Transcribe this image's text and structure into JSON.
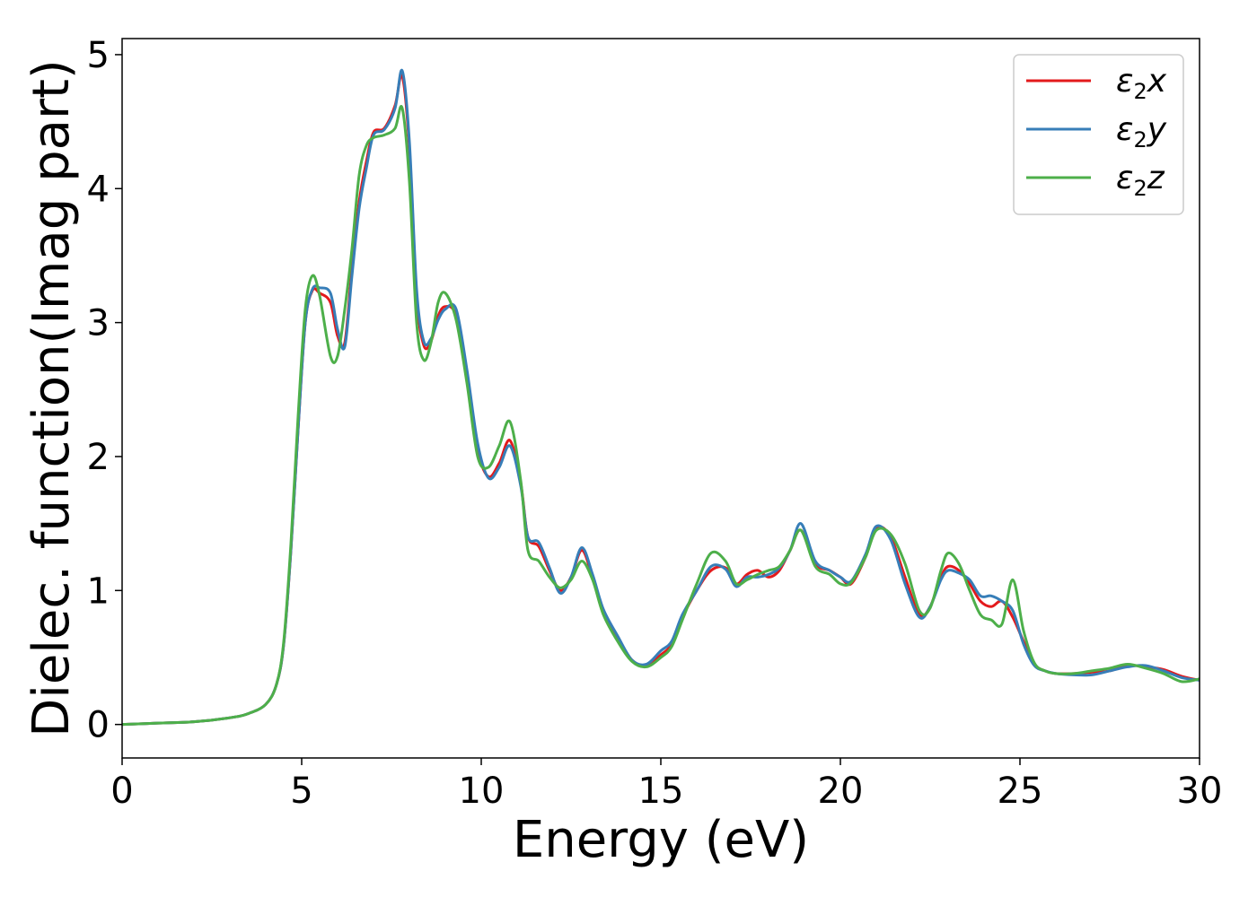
{
  "chart_data": {
    "type": "line",
    "title": "",
    "xlabel": "Energy (eV)",
    "ylabel": "Dielec. function(Imag part)",
    "xlim": [
      0,
      30
    ],
    "ylim": [
      -0.25,
      5.12
    ],
    "xticks": [
      0,
      5,
      10,
      15,
      20,
      25,
      30
    ],
    "yticks": [
      0,
      1,
      2,
      3,
      4,
      5
    ],
    "grid": false,
    "legend_position": "top-right",
    "series": [
      {
        "name": "ε₂x",
        "label_main": "ε",
        "label_sub": "2",
        "label_suffix": "x",
        "color": "#e31a1c",
        "x": [
          0,
          1,
          2,
          3,
          3.5,
          4,
          4.3,
          4.5,
          4.7,
          4.9,
          5.1,
          5.3,
          5.5,
          5.8,
          6.0,
          6.2,
          6.4,
          6.6,
          6.8,
          7.0,
          7.3,
          7.6,
          7.8,
          8.0,
          8.2,
          8.4,
          8.6,
          8.8,
          9.0,
          9.3,
          9.6,
          9.9,
          10.2,
          10.5,
          10.8,
          11.1,
          11.3,
          11.6,
          11.9,
          12.2,
          12.5,
          12.8,
          13.1,
          13.4,
          13.8,
          14.2,
          14.6,
          15.0,
          15.3,
          15.6,
          16.0,
          16.4,
          16.8,
          17.1,
          17.4,
          17.7,
          18.0,
          18.3,
          18.6,
          18.9,
          19.3,
          19.7,
          20.0,
          20.3,
          20.7,
          21.0,
          21.4,
          21.8,
          22.2,
          22.5,
          22.8,
          23.0,
          23.3,
          23.6,
          23.9,
          24.2,
          24.5,
          24.8,
          25.1,
          25.4,
          25.7,
          26.0,
          26.5,
          27.0,
          27.5,
          28.0,
          28.5,
          29.0,
          29.5,
          30.0
        ],
        "y": [
          0,
          0.01,
          0.02,
          0.05,
          0.08,
          0.15,
          0.3,
          0.6,
          1.3,
          2.2,
          3.0,
          3.24,
          3.22,
          3.15,
          2.9,
          2.85,
          3.4,
          3.9,
          4.2,
          4.42,
          4.45,
          4.62,
          4.84,
          4.3,
          3.2,
          2.83,
          2.86,
          3.05,
          3.12,
          3.05,
          2.6,
          2.05,
          1.85,
          1.95,
          2.12,
          1.8,
          1.4,
          1.33,
          1.15,
          1.0,
          1.1,
          1.3,
          1.1,
          0.85,
          0.65,
          0.48,
          0.44,
          0.52,
          0.6,
          0.8,
          1.0,
          1.15,
          1.17,
          1.05,
          1.12,
          1.15,
          1.1,
          1.15,
          1.3,
          1.45,
          1.2,
          1.15,
          1.1,
          1.05,
          1.25,
          1.47,
          1.4,
          1.1,
          0.82,
          0.88,
          1.1,
          1.18,
          1.15,
          1.05,
          0.92,
          0.88,
          0.92,
          0.8,
          0.62,
          0.45,
          0.4,
          0.38,
          0.38,
          0.39,
          0.4,
          0.44,
          0.43,
          0.41,
          0.36,
          0.33
        ]
      },
      {
        "name": "ε₂y",
        "label_main": "ε",
        "label_sub": "2",
        "label_suffix": "y",
        "color": "#377eb8",
        "x": [
          0,
          1,
          2,
          3,
          3.5,
          4,
          4.3,
          4.5,
          4.7,
          4.9,
          5.1,
          5.3,
          5.5,
          5.8,
          6.0,
          6.2,
          6.4,
          6.6,
          6.8,
          7.0,
          7.3,
          7.6,
          7.8,
          8.0,
          8.2,
          8.4,
          8.6,
          8.8,
          9.0,
          9.3,
          9.6,
          9.9,
          10.2,
          10.5,
          10.8,
          11.1,
          11.3,
          11.6,
          11.9,
          12.2,
          12.5,
          12.8,
          13.1,
          13.4,
          13.8,
          14.2,
          14.6,
          15.0,
          15.3,
          15.6,
          16.0,
          16.4,
          16.8,
          17.1,
          17.4,
          17.7,
          18.0,
          18.3,
          18.6,
          18.9,
          19.3,
          19.7,
          20.0,
          20.3,
          20.7,
          21.0,
          21.4,
          21.8,
          22.2,
          22.5,
          22.8,
          23.0,
          23.3,
          23.6,
          23.9,
          24.2,
          24.5,
          24.8,
          25.1,
          25.4,
          25.7,
          26.0,
          26.5,
          27.0,
          27.5,
          28.0,
          28.5,
          29.0,
          29.5,
          30.0
        ],
        "y": [
          0,
          0.01,
          0.02,
          0.05,
          0.08,
          0.15,
          0.3,
          0.6,
          1.3,
          2.2,
          3.0,
          3.25,
          3.26,
          3.22,
          2.95,
          2.82,
          3.35,
          3.85,
          4.15,
          4.4,
          4.44,
          4.6,
          4.88,
          4.35,
          3.25,
          2.86,
          2.88,
          3.02,
          3.1,
          3.1,
          2.65,
          2.1,
          1.84,
          1.92,
          2.08,
          1.78,
          1.4,
          1.36,
          1.17,
          0.98,
          1.1,
          1.32,
          1.12,
          0.86,
          0.66,
          0.48,
          0.45,
          0.55,
          0.62,
          0.82,
          1.0,
          1.18,
          1.16,
          1.03,
          1.1,
          1.1,
          1.12,
          1.17,
          1.3,
          1.5,
          1.22,
          1.15,
          1.1,
          1.07,
          1.27,
          1.48,
          1.38,
          1.05,
          0.8,
          0.88,
          1.08,
          1.15,
          1.13,
          1.08,
          0.96,
          0.96,
          0.92,
          0.85,
          0.6,
          0.44,
          0.4,
          0.38,
          0.37,
          0.37,
          0.4,
          0.43,
          0.44,
          0.4,
          0.35,
          0.33
        ]
      },
      {
        "name": "ε₂z",
        "label_main": "ε",
        "label_sub": "2",
        "label_suffix": "z",
        "color": "#4daf4a",
        "x": [
          0,
          1,
          2,
          3,
          3.5,
          4,
          4.3,
          4.5,
          4.7,
          4.9,
          5.1,
          5.3,
          5.5,
          5.8,
          6.0,
          6.2,
          6.4,
          6.6,
          6.8,
          7.0,
          7.3,
          7.6,
          7.8,
          8.0,
          8.2,
          8.4,
          8.6,
          8.8,
          9.0,
          9.3,
          9.6,
          9.9,
          10.2,
          10.5,
          10.8,
          11.1,
          11.3,
          11.6,
          11.9,
          12.2,
          12.5,
          12.8,
          13.1,
          13.4,
          13.8,
          14.2,
          14.6,
          15.0,
          15.3,
          15.6,
          16.0,
          16.4,
          16.8,
          17.1,
          17.4,
          17.7,
          18.0,
          18.3,
          18.6,
          18.9,
          19.3,
          19.7,
          20.0,
          20.3,
          20.7,
          21.0,
          21.4,
          21.8,
          22.2,
          22.5,
          22.8,
          23.0,
          23.3,
          23.6,
          23.9,
          24.2,
          24.5,
          24.8,
          25.1,
          25.4,
          25.7,
          26.0,
          26.5,
          27.0,
          27.5,
          28.0,
          28.5,
          29.0,
          29.5,
          30.0
        ],
        "y": [
          0,
          0.01,
          0.02,
          0.05,
          0.08,
          0.15,
          0.3,
          0.62,
          1.35,
          2.3,
          3.1,
          3.35,
          3.2,
          2.75,
          2.75,
          3.1,
          3.55,
          4.1,
          4.32,
          4.38,
          4.4,
          4.45,
          4.6,
          4.05,
          3.0,
          2.72,
          2.85,
          3.15,
          3.22,
          3.02,
          2.55,
          2.0,
          1.92,
          2.08,
          2.26,
          1.82,
          1.3,
          1.22,
          1.1,
          1.02,
          1.08,
          1.22,
          1.08,
          0.82,
          0.62,
          0.47,
          0.43,
          0.5,
          0.58,
          0.78,
          1.05,
          1.28,
          1.22,
          1.05,
          1.08,
          1.12,
          1.15,
          1.18,
          1.3,
          1.45,
          1.18,
          1.12,
          1.05,
          1.06,
          1.25,
          1.45,
          1.42,
          1.2,
          0.85,
          0.87,
          1.15,
          1.28,
          1.2,
          1.0,
          0.82,
          0.78,
          0.75,
          1.08,
          0.7,
          0.46,
          0.4,
          0.38,
          0.38,
          0.4,
          0.42,
          0.45,
          0.42,
          0.38,
          0.32,
          0.34
        ]
      }
    ]
  }
}
